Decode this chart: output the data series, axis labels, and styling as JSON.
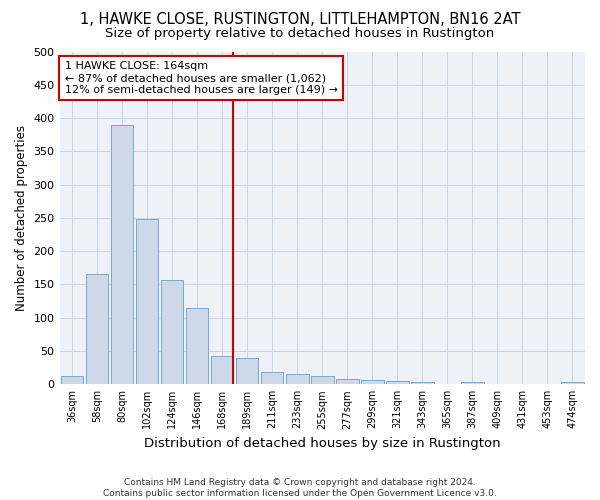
{
  "title1": "1, HAWKE CLOSE, RUSTINGTON, LITTLEHAMPTON, BN16 2AT",
  "title2": "Size of property relative to detached houses in Rustington",
  "xlabel": "Distribution of detached houses by size in Rustington",
  "ylabel": "Number of detached properties",
  "categories": [
    "36sqm",
    "58sqm",
    "80sqm",
    "102sqm",
    "124sqm",
    "146sqm",
    "168sqm",
    "189sqm",
    "211sqm",
    "233sqm",
    "255sqm",
    "277sqm",
    "299sqm",
    "321sqm",
    "343sqm",
    "365sqm",
    "387sqm",
    "409sqm",
    "431sqm",
    "453sqm",
    "474sqm"
  ],
  "values": [
    12,
    165,
    390,
    248,
    157,
    115,
    43,
    40,
    19,
    15,
    13,
    8,
    6,
    5,
    3,
    0,
    3,
    0,
    0,
    0,
    3
  ],
  "bar_color": "#cdd9e8",
  "bar_edge_color": "#7aa7cc",
  "vline_index": 6,
  "vline_color": "#cc0000",
  "annotation_line1": "1 HAWKE CLOSE: 164sqm",
  "annotation_line2": "← 87% of detached houses are smaller (1,062)",
  "annotation_line3": "12% of semi-detached houses are larger (149) →",
  "annotation_box_color": "#ffffff",
  "annotation_box_edge": "#cc0000",
  "ylim": [
    0,
    500
  ],
  "yticks": [
    0,
    50,
    100,
    150,
    200,
    250,
    300,
    350,
    400,
    450,
    500
  ],
  "plot_bg_color": "#eef2f8",
  "grid_color": "#c8d4e4",
  "footnote": "Contains HM Land Registry data © Crown copyright and database right 2024.\nContains public sector information licensed under the Open Government Licence v3.0.",
  "title1_fontsize": 10.5,
  "title2_fontsize": 9.5
}
